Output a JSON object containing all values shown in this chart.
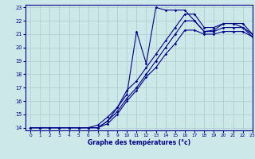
{
  "xlabel": "Graphe des températures (°c)",
  "xlim": [
    -0.5,
    23
  ],
  "ylim": [
    13.8,
    23.2
  ],
  "xticks": [
    0,
    1,
    2,
    3,
    4,
    5,
    6,
    7,
    8,
    9,
    10,
    11,
    12,
    13,
    14,
    15,
    16,
    17,
    18,
    19,
    20,
    21,
    22,
    23
  ],
  "yticks": [
    14,
    15,
    16,
    17,
    18,
    19,
    20,
    21,
    22,
    23
  ],
  "bg_color": "#cce8e8",
  "line_color": "#00008b",
  "grid_color": "#aacccc",
  "series1": [
    14.0,
    14.0,
    14.0,
    14.0,
    14.0,
    14.0,
    14.0,
    14.0,
    14.5,
    15.5,
    16.5,
    21.2,
    18.8,
    23.0,
    22.8,
    22.8,
    22.8,
    22.0,
    21.2,
    21.3,
    21.8,
    21.8,
    21.5,
    20.8
  ],
  "series2": [
    14.0,
    14.0,
    14.0,
    14.0,
    14.0,
    14.0,
    14.0,
    14.2,
    14.8,
    15.5,
    16.8,
    17.5,
    18.5,
    19.5,
    20.5,
    21.5,
    22.5,
    22.5,
    21.5,
    21.5,
    21.8,
    21.8,
    21.8,
    21.0
  ],
  "series3": [
    14.0,
    14.0,
    14.0,
    14.0,
    14.0,
    14.0,
    14.0,
    14.0,
    14.5,
    15.2,
    16.2,
    17.0,
    18.0,
    19.0,
    20.0,
    21.0,
    22.0,
    22.0,
    21.2,
    21.2,
    21.5,
    21.5,
    21.5,
    21.0
  ],
  "series4": [
    14.0,
    14.0,
    14.0,
    14.0,
    14.0,
    14.0,
    14.0,
    14.0,
    14.3,
    15.0,
    16.0,
    16.8,
    17.8,
    18.5,
    19.5,
    20.3,
    21.3,
    21.3,
    21.0,
    21.0,
    21.2,
    21.2,
    21.2,
    20.8
  ]
}
